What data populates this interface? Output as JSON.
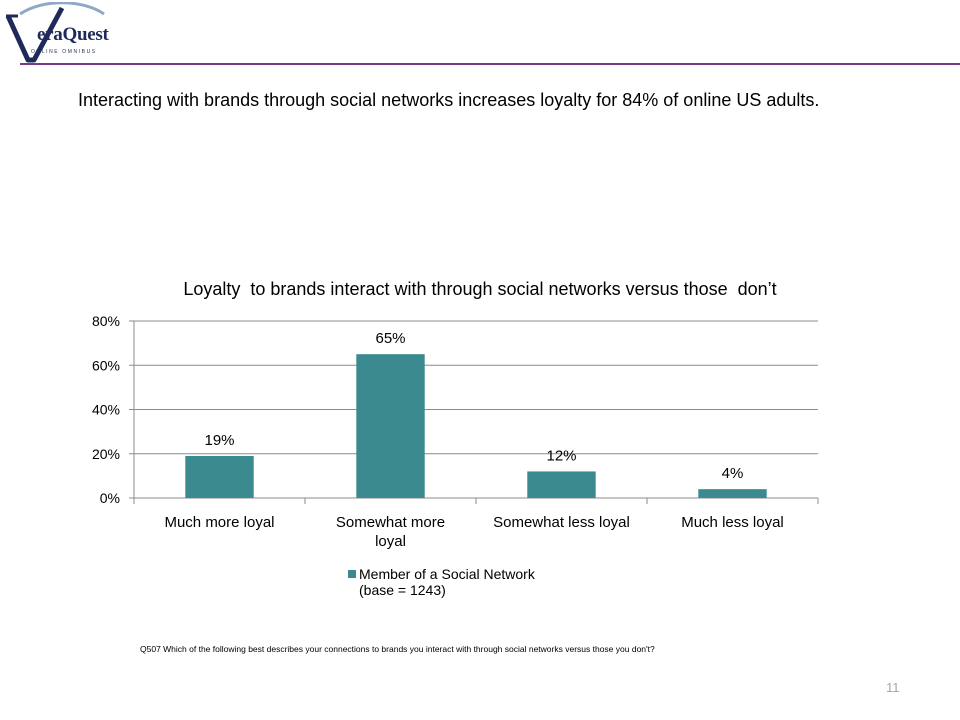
{
  "logo": {
    "name": "eraQuest",
    "sub": "ONLINE OMNIBUS",
    "color": "#1e2a5a"
  },
  "slide_title": "Interacting with brands through social networks increases loyalty for 84% of online US adults.",
  "colors": {
    "bar": "#3a8a8f",
    "accent_rule": "#7b3a88",
    "grid": "#8c8c8c",
    "page_number": "#a6a6a6"
  },
  "chart_data": {
    "type": "bar",
    "title": "Loyalty  to brands interact with through social networks versus those  don’t",
    "categories": [
      [
        "Much more loyal"
      ],
      [
        "Somewhat more",
        "loyal"
      ],
      [
        "Somewhat less loyal"
      ],
      [
        "Much less loyal"
      ]
    ],
    "series": [
      {
        "name": "Member of a Social Network (base = 1243)",
        "values": [
          19,
          65,
          12,
          4
        ],
        "labels": [
          "19%",
          "65%",
          "12%",
          "4%"
        ]
      }
    ],
    "ylim": [
      0,
      80
    ],
    "yticks": [
      0,
      20,
      40,
      60,
      80
    ],
    "ytick_labels": [
      "0%",
      "20%",
      "40%",
      "60%",
      "80%"
    ],
    "grid": true,
    "legend": {
      "position": "bottom",
      "lines": [
        "Member of a Social Network",
        "(base = 1243)"
      ]
    }
  },
  "footnote": "Q507  Which of the following best describes your connections to brands you interact with through social networks versus those you don't?",
  "page_number": "11"
}
